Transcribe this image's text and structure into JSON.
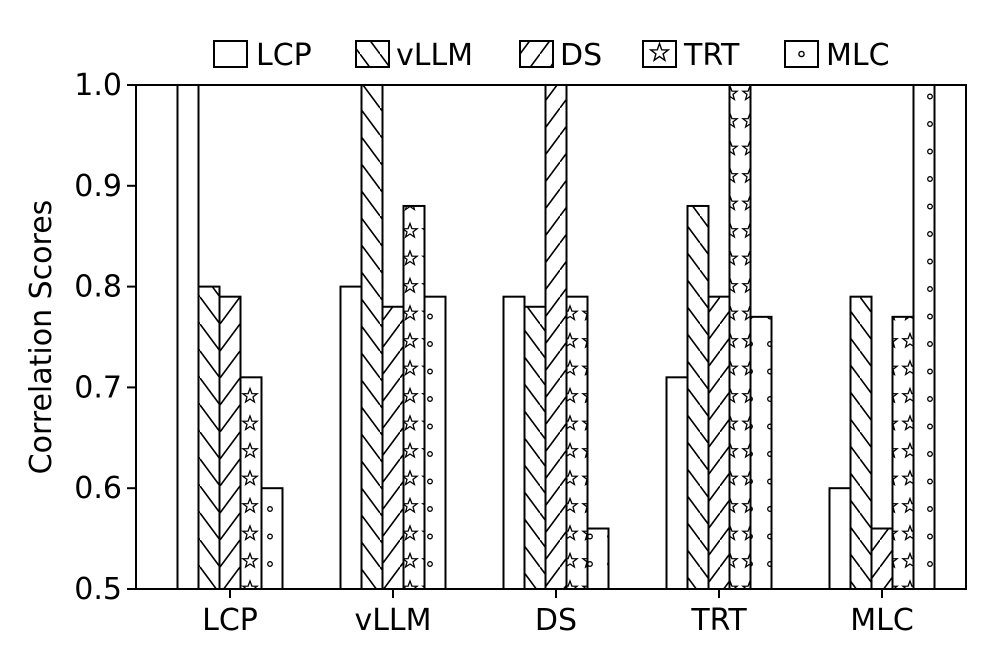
{
  "chart_data": {
    "type": "bar",
    "categories": [
      "LCP",
      "vLLM",
      "DS",
      "TRT",
      "MLC"
    ],
    "series": [
      {
        "name": "LCP",
        "pattern": "none",
        "values": [
          1.0,
          0.8,
          0.79,
          0.71,
          0.6
        ]
      },
      {
        "name": "vLLM",
        "pattern": "backslash",
        "values": [
          0.8,
          1.0,
          0.78,
          0.88,
          0.79
        ]
      },
      {
        "name": "DS",
        "pattern": "slash",
        "values": [
          0.79,
          0.78,
          1.0,
          0.79,
          0.56
        ]
      },
      {
        "name": "TRT",
        "pattern": "stars",
        "values": [
          0.71,
          0.88,
          0.79,
          1.0,
          0.77
        ]
      },
      {
        "name": "MLC",
        "pattern": "dots",
        "values": [
          0.6,
          0.79,
          0.56,
          0.77,
          1.0
        ]
      }
    ],
    "title": "",
    "xlabel": "",
    "ylabel": "Correlation Scores",
    "ylim": [
      0.5,
      1.0
    ],
    "yticks": [
      "0.5",
      "0.6",
      "0.7",
      "0.8",
      "0.9",
      "1.0"
    ],
    "grid": false,
    "legend_position": "top",
    "colors": {
      "bar_fill": "#ffffff",
      "bar_edge": "#000000"
    }
  }
}
